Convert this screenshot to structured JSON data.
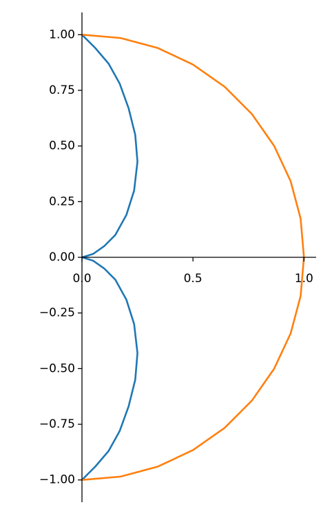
{
  "chart_data": {
    "type": "line",
    "series": [
      {
        "color": "#1f77b4",
        "x": [
          0,
          0.06,
          0.12,
          0.17,
          0.21,
          0.24,
          0.25,
          0.235,
          0.2,
          0.15,
          0.1,
          0.05,
          0,
          0.05,
          0.1,
          0.15,
          0.2,
          0.235,
          0.25,
          0.24,
          0.21,
          0.17,
          0.12,
          0.06,
          0
        ],
        "values": [
          -1,
          -0.94,
          -0.87,
          -0.78,
          -0.67,
          -0.55,
          -0.43,
          -0.3,
          -0.19,
          -0.1,
          -0.05,
          -0.015,
          0,
          0.015,
          0.05,
          0.1,
          0.19,
          0.3,
          0.43,
          0.55,
          0.67,
          0.78,
          0.87,
          0.94,
          1
        ]
      },
      {
        "color": "#ff7f0e",
        "x": [
          0,
          0.174,
          0.342,
          0.5,
          0.643,
          0.766,
          0.866,
          0.94,
          0.985,
          1,
          0.985,
          0.94,
          0.866,
          0.766,
          0.643,
          0.5,
          0.342,
          0.174,
          0
        ],
        "values": [
          -1,
          -0.985,
          -0.94,
          -0.866,
          -0.766,
          -0.643,
          -0.5,
          -0.342,
          -0.174,
          0,
          0.174,
          0.342,
          0.5,
          0.643,
          0.766,
          0.866,
          0.94,
          0.985,
          1
        ]
      }
    ],
    "xlim": [
      0,
      1.055
    ],
    "ylim": [
      -1.1,
      1.1
    ],
    "xticks": [
      {
        "value": 0,
        "label": "0.0"
      },
      {
        "value": 0.5,
        "label": "0.5"
      },
      {
        "value": 1,
        "label": "1.0"
      }
    ],
    "yticks": [
      {
        "value": -1,
        "label": "−1.00"
      },
      {
        "value": -0.75,
        "label": "−0.75"
      },
      {
        "value": -0.5,
        "label": "−0.50"
      },
      {
        "value": -0.25,
        "label": "−0.25"
      },
      {
        "value": 0,
        "label": "0.00"
      },
      {
        "value": 0.25,
        "label": "0.25"
      },
      {
        "value": 0.5,
        "label": "0.50"
      },
      {
        "value": 0.75,
        "label": "0.75"
      },
      {
        "value": 1,
        "label": "1.00"
      }
    ]
  }
}
